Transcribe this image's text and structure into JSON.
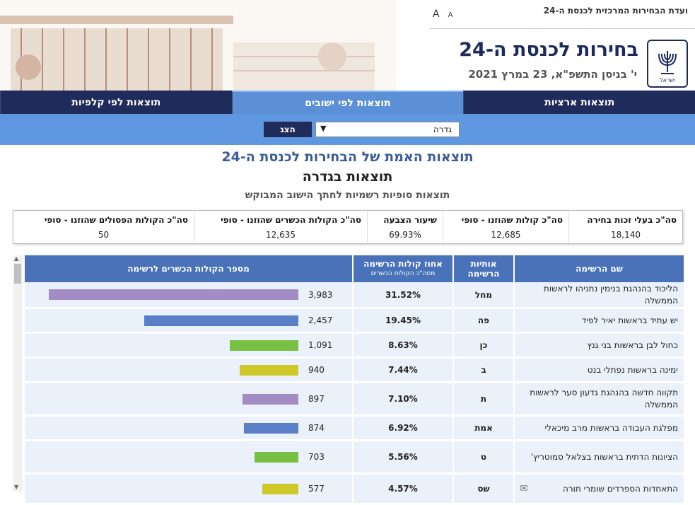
{
  "header": {
    "committee": "ועדת הבחירות המרכזית לכנסת ה-24",
    "title": "בחירות לכנסת ה-24",
    "date": "י' בניסן התשפ\"א, 23 במרץ 2021",
    "font_large": "A",
    "font_small": "A",
    "emblem_text": "ישראל"
  },
  "tabs": [
    {
      "label": "תוצאות ארציות",
      "active": false
    },
    {
      "label": "תוצאות לפי ישובים",
      "active": true
    },
    {
      "label": "תוצאות לפי קלפיות",
      "active": false
    }
  ],
  "selector": {
    "value": "גדרה",
    "button": "הצג"
  },
  "headings": {
    "h1": "תוצאות האמת של הבחירות לכנסת ה-24",
    "h2": "תוצאות בגדרה",
    "h3": "תוצאות סופיות רשמיות לחתך הישוב המבוקש"
  },
  "stats": [
    {
      "label": "סה\"כ בעלי זכות בחירה",
      "value": "18,140"
    },
    {
      "label": "סה\"כ קולות שהוזנו - סופי",
      "value": "12,685"
    },
    {
      "label": "שיעור הצבעה",
      "value": "69.93%"
    },
    {
      "label": "סה\"כ הקולות הכשרים שהוזנו - סופי",
      "value": "12,635"
    },
    {
      "label": "סה\"כ הקולות הפסולים שהוזנו - סופי",
      "value": "50"
    }
  ],
  "table": {
    "headers": {
      "name": "שם הרשימה",
      "letter": "אותיות הרשימה",
      "pct": "אחוז קולות הרשימה",
      "pct_sub": "מסה\"כ הקולות הכשרים",
      "votes": "מספר הקולות הכשרים לרשימה"
    },
    "rows": [
      {
        "name": "הליכוד בהנהגת בנימין נתניהו לראשות הממשלה",
        "letter": "מחל",
        "pct": "31.52%",
        "votes": "3,983",
        "value": 3983,
        "color": "#a38bc4"
      },
      {
        "name": "יש עתיד בראשות יאיר לפיד",
        "letter": "פה",
        "pct": "19.45%",
        "votes": "2,457",
        "value": 2457,
        "color": "#5b7fc6"
      },
      {
        "name": "כחול לבן בראשות בני גנץ",
        "letter": "כן",
        "pct": "8.63%",
        "votes": "1,091",
        "value": 1091,
        "color": "#78c044"
      },
      {
        "name": "ימינה בראשות נפתלי בנט",
        "letter": "ב",
        "pct": "7.44%",
        "votes": "940",
        "value": 940,
        "color": "#cfc829"
      },
      {
        "name": "תקווה חדשה בהנהגת גדעון סער לראשות הממשלה",
        "letter": "ת",
        "pct": "7.10%",
        "votes": "897",
        "value": 897,
        "color": "#a38bc4"
      },
      {
        "name": "מפלגת העבודה בראשות מרב מיכאלי",
        "letter": "אמת",
        "pct": "6.92%",
        "votes": "874",
        "value": 874,
        "color": "#5b7fc6"
      },
      {
        "name": "הציונות הדתית בראשות בצלאל סמוטריץ'",
        "letter": "ט",
        "pct": "5.56%",
        "votes": "703",
        "value": 703,
        "color": "#78c044"
      },
      {
        "name": "התאחדות הספרדים שומרי תורה",
        "letter": "שס",
        "pct": "4.57%",
        "votes": "577",
        "value": 577,
        "color": "#cfc829"
      }
    ]
  }
}
